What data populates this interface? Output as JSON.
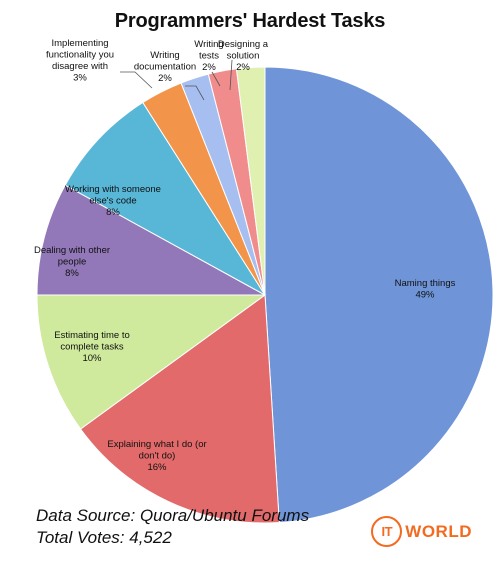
{
  "chart_data": {
    "type": "pie",
    "title": "Programmers' Hardest Tasks",
    "slices": [
      {
        "label": "Naming things",
        "value": 49,
        "display": "49%",
        "color": "#6f94d8"
      },
      {
        "label": "Explaining what I do (or don't do)",
        "value": 16,
        "display": "16%",
        "color": "#e26a6a"
      },
      {
        "label": "Estimating time to complete tasks",
        "value": 10,
        "display": "10%",
        "color": "#cfea9c"
      },
      {
        "label": "Dealing with other people",
        "value": 8,
        "display": "8%",
        "color": "#9278b8"
      },
      {
        "label": "Working with someone else's code",
        "value": 8,
        "display": "8%",
        "color": "#58b6d6"
      },
      {
        "label": "Implementing functionality you disagree with",
        "value": 3,
        "display": "3%",
        "color": "#f2954b"
      },
      {
        "label": "Writing documentation",
        "value": 2,
        "display": "2%",
        "color": "#a7bff0"
      },
      {
        "label": "Writing tests",
        "value": 2,
        "display": "2%",
        "color": "#f08c8c"
      },
      {
        "label": "Designing a solution",
        "value": 2,
        "display": "2%",
        "color": "#dff0b0"
      }
    ]
  },
  "footer": {
    "source": "Data Source: Quora/Ubuntu Forums",
    "votes": "Total Votes: 4,522"
  },
  "logo": {
    "badge": "IT",
    "word": "WORLD",
    "color": "#f26b21"
  }
}
